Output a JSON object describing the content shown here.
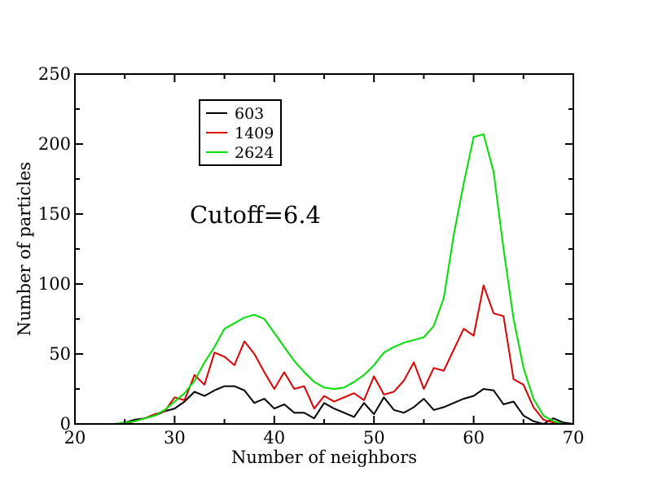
{
  "chart_data": {
    "type": "line",
    "xlabel": "Number of neighbors",
    "ylabel": "Number of particles",
    "xlim": [
      20,
      70
    ],
    "ylim": [
      0,
      250
    ],
    "xticks": [
      "20",
      "30",
      "40",
      "50",
      "60",
      "70"
    ],
    "yticks": [
      "0",
      "50",
      "100",
      "150",
      "200",
      "250"
    ],
    "annotation": "Cutoff=6.4",
    "legend_position": "top-left",
    "grid": false,
    "x": [
      23,
      24,
      25,
      26,
      27,
      28,
      29,
      30,
      31,
      32,
      33,
      34,
      35,
      36,
      37,
      38,
      39,
      40,
      41,
      42,
      43,
      44,
      45,
      46,
      47,
      48,
      49,
      50,
      51,
      52,
      53,
      54,
      55,
      56,
      57,
      58,
      59,
      60,
      61,
      62,
      63,
      64,
      65,
      66,
      67,
      68,
      69,
      70
    ],
    "series": [
      {
        "name": "603",
        "color": "#000000",
        "values": [
          0,
          0,
          1,
          3,
          4,
          6,
          9,
          11,
          16,
          23,
          20,
          24,
          27,
          27,
          24,
          15,
          18,
          11,
          14,
          8,
          8,
          4,
          15,
          11,
          8,
          5,
          15,
          7,
          19,
          10,
          8,
          12,
          18,
          10,
          12,
          15,
          18,
          20,
          25,
          24,
          14,
          16,
          6,
          2,
          0,
          4,
          1,
          0
        ]
      },
      {
        "name": "1409",
        "color": "#dd0000",
        "values": [
          0,
          0,
          0,
          2,
          4,
          7,
          9,
          19,
          17,
          35,
          28,
          51,
          48,
          42,
          59,
          50,
          37,
          25,
          37,
          25,
          27,
          11,
          20,
          16,
          19,
          22,
          17,
          34,
          21,
          23,
          31,
          44,
          25,
          40,
          38,
          53,
          68,
          63,
          99,
          79,
          77,
          32,
          28,
          12,
          3,
          1,
          0,
          0
        ]
      },
      {
        "name": "2624",
        "color": "#00e000",
        "values": [
          0,
          0,
          1,
          2,
          4,
          6,
          10,
          16,
          22,
          31,
          44,
          55,
          68,
          72,
          76,
          78,
          75,
          65,
          55,
          45,
          37,
          30,
          26,
          25,
          26,
          30,
          35,
          42,
          51,
          55,
          58,
          60,
          62,
          70,
          90,
          135,
          172,
          205,
          207,
          180,
          125,
          75,
          40,
          18,
          6,
          2,
          0,
          0
        ]
      }
    ]
  }
}
